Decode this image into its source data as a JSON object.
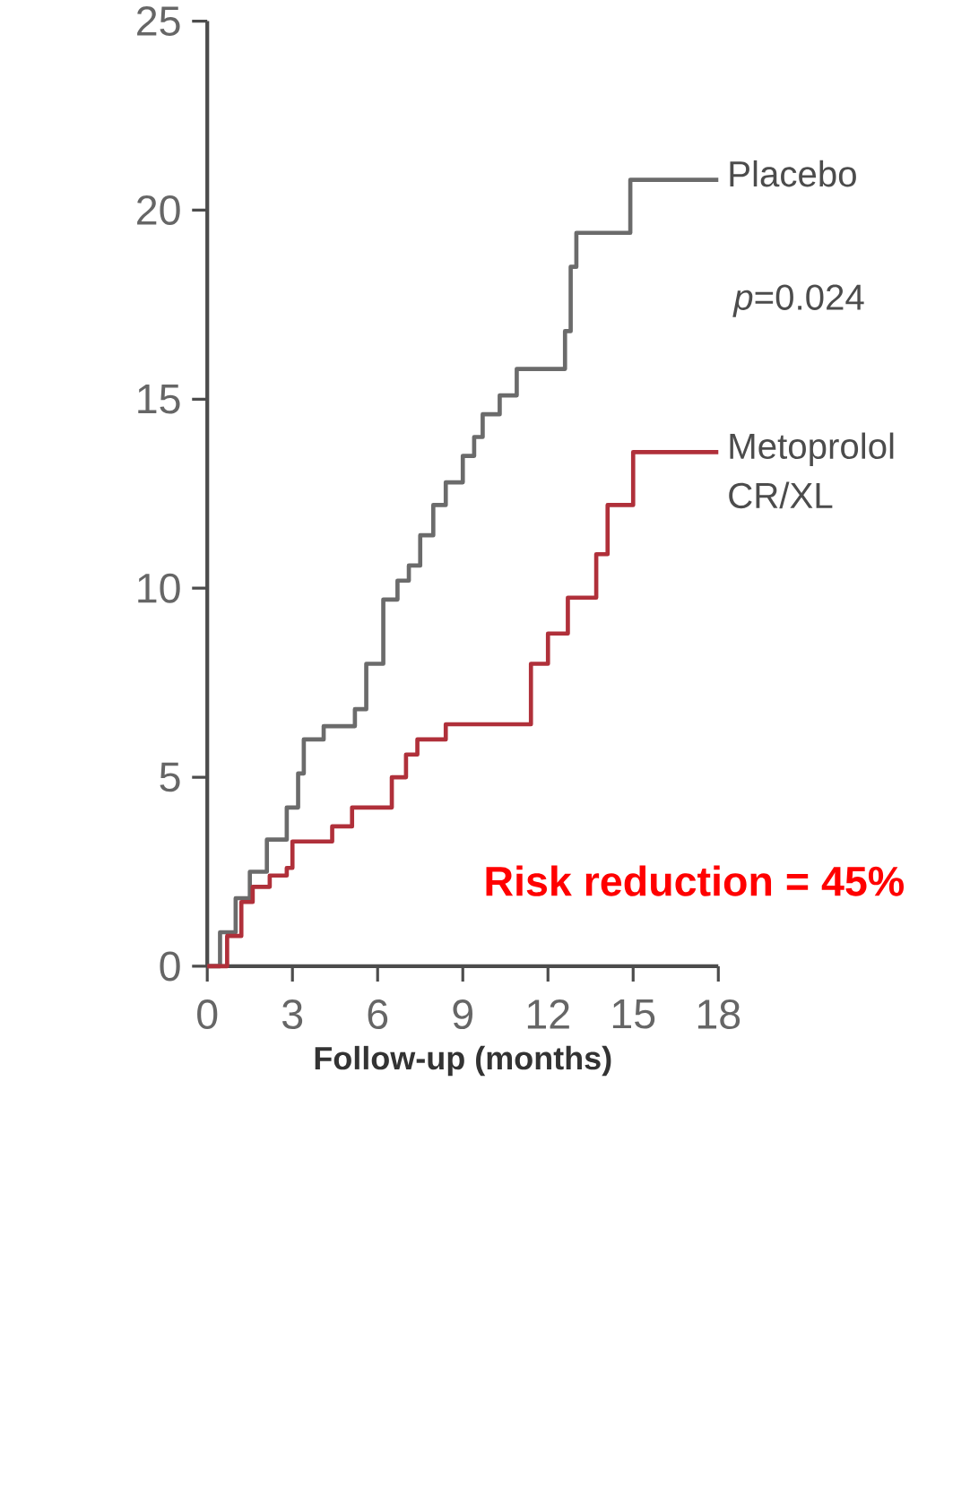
{
  "chart_data": {
    "type": "step",
    "xlabel": "Follow-up (months)",
    "xlim": [
      0,
      18
    ],
    "ylim": [
      0,
      25
    ],
    "xticks": [
      0,
      3,
      6,
      9,
      12,
      15,
      18
    ],
    "yticks": [
      0,
      5,
      10,
      15,
      20,
      25
    ],
    "grid": false,
    "legend": false,
    "marker": "none",
    "line_style": "solid",
    "annotations": [
      "*p*=0.024",
      "**Risk reduction = 45%**"
    ],
    "series": [
      {
        "name": "Placebo",
        "color": "#6b6b6b",
        "x": [
          0,
          0.45,
          1.0,
          1.5,
          2.1,
          2.8,
          3.2,
          3.4,
          4.1,
          5.2,
          5.6,
          6.2,
          6.7,
          7.1,
          7.5,
          7.96,
          8.4,
          9.0,
          9.4,
          9.7,
          10.3,
          10.9,
          12.6,
          12.8,
          13.0,
          14.9,
          18
        ],
        "values": [
          0,
          0.9,
          1.8,
          2.5,
          3.35,
          4.2,
          5.1,
          6.0,
          6.35,
          6.8,
          8.0,
          9.7,
          10.2,
          10.6,
          11.4,
          12.2,
          12.8,
          13.5,
          14.0,
          14.6,
          15.1,
          15.8,
          16.8,
          18.5,
          19.4,
          20.8,
          20.8
        ]
      },
      {
        "name": "Metoprolol CR/XL",
        "color": "#b0303a",
        "x": [
          0,
          0.7,
          1.2,
          1.6,
          2.2,
          2.8,
          3.0,
          4.4,
          5.1,
          6.1,
          6.5,
          7.0,
          7.4,
          8.4,
          11.2,
          11.4,
          12.0,
          12.7,
          13.7,
          14.1,
          15.0,
          18
        ],
        "values": [
          0,
          0.8,
          1.7,
          2.1,
          2.4,
          2.6,
          3.3,
          3.7,
          4.2,
          4.2,
          5.0,
          5.6,
          6.0,
          6.4,
          6.4,
          8.0,
          8.8,
          9.75,
          10.9,
          12.2,
          13.6,
          13.6
        ]
      }
    ]
  }
}
